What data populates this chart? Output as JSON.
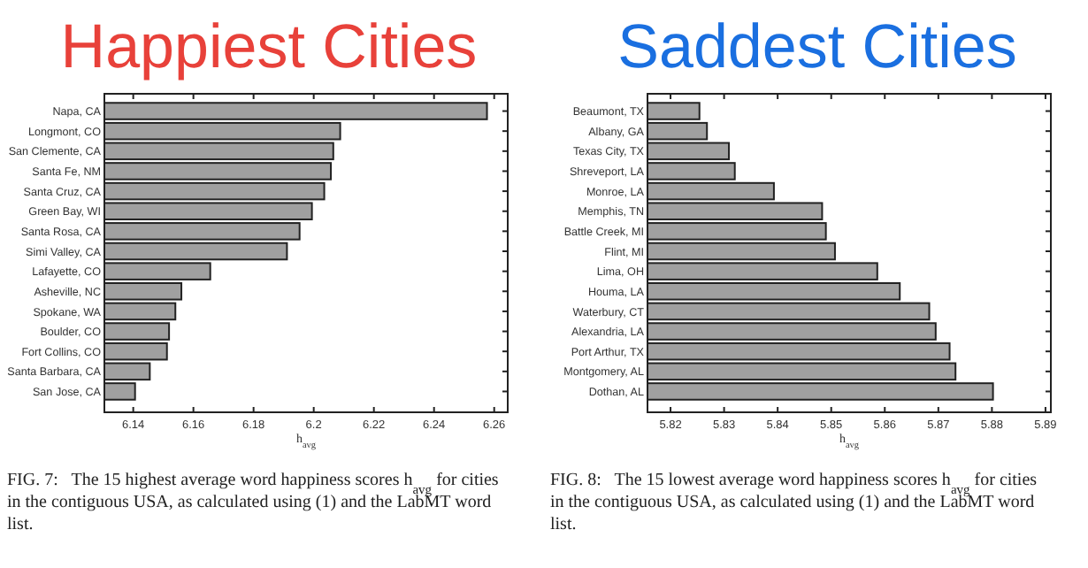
{
  "chart_data": [
    {
      "type": "bar",
      "orientation": "horizontal",
      "title": "Happiest Cities",
      "xlabel": "h$_{avg}$",
      "categories": [
        "Napa, CA",
        "Longmont, CO",
        "San Clemente, CA",
        "Santa Fe, NM",
        "Santa Cruz, CA",
        "Green Bay, WI",
        "Santa Rosa, CA",
        "Simi Valley, CA",
        "Lafayette, CO",
        "Asheville, NC",
        "Spokane, WA",
        "Boulder, CO",
        "Fort Collins, CO",
        "Santa Barbara, CA",
        "San Jose, CA"
      ],
      "values": [
        6.2576,
        6.2088,
        6.2065,
        6.2057,
        6.2035,
        6.1994,
        6.1953,
        6.1911,
        6.1656,
        6.156,
        6.154,
        6.1519,
        6.1512,
        6.1455,
        6.1406
      ],
      "color": "#a0a0a0",
      "xlim": [
        6.1304,
        6.2645
      ],
      "xticks": [
        6.14,
        6.16,
        6.18,
        6.2,
        6.22,
        6.24,
        6.26
      ],
      "grid": false,
      "annotations": [
        "FIG. 7:   The 15 highest average word happiness scores h$_{avg}$ for cities in the contiguous USA, as calculated using (1) and the LabMT word list."
      ]
    },
    {
      "type": "bar",
      "orientation": "horizontal",
      "title": "Saddest Cities",
      "xlabel": "h$_{avg}$",
      "categories": [
        "Beaumont, TX",
        "Albany, GA",
        "Texas City, TX",
        "Shreveport, LA",
        "Monroe, LA",
        "Memphis, TN",
        "Battle Creek, MI",
        "Flint, MI",
        "Lima, OH",
        "Houma, LA",
        "Waterbury, CT",
        "Alexandria, LA",
        "Port Arthur, TX",
        "Montgomery, AL",
        "Dothan, AL"
      ],
      "values": [
        5.8254,
        5.8268,
        5.8309,
        5.832,
        5.8393,
        5.8483,
        5.849,
        5.8507,
        5.8586,
        5.8628,
        5.8683,
        5.8695,
        5.8721,
        5.8732,
        5.8802
      ],
      "color": "#a0a0a0",
      "xlim": [
        5.8157,
        5.891
      ],
      "xticks": [
        5.82,
        5.83,
        5.84,
        5.85,
        5.86,
        5.87,
        5.88,
        5.89
      ],
      "grid": false,
      "annotations": [
        "FIG. 8:   The 15 lowest average word happiness scores h$_{avg}$ for cities in the contiguous USA, as calculated using (1) and the LabMT word list."
      ]
    }
  ]
}
